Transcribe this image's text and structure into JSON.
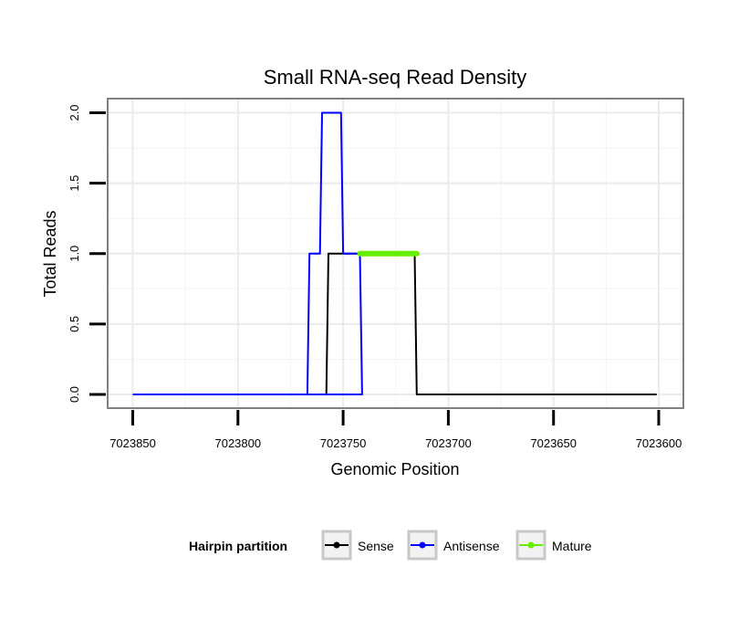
{
  "chart_data": {
    "type": "line",
    "title": "Small RNA-seq Read Density",
    "xlabel": "Genomic Position",
    "ylabel": "Total Reads",
    "x_reversed": true,
    "xlim": [
      7023850,
      7023600
    ],
    "ylim": [
      0,
      2
    ],
    "x_ticks": [
      7023850,
      7023800,
      7023750,
      7023700,
      7023650,
      7023600
    ],
    "x_tick_labels": [
      "7023850",
      "7023800",
      "7023750",
      "7023700",
      "7023650",
      "7023600"
    ],
    "y_ticks": [
      0,
      0.5,
      1,
      1.5,
      2
    ],
    "y_tick_labels": [
      "0.0",
      "0.5",
      "1.0",
      "1.5",
      "2.0"
    ],
    "grid": true,
    "legend_title": "Hairpin partition",
    "legend_position": "bottom",
    "series": [
      {
        "name": "Sense",
        "color": "#000000",
        "step": true,
        "points": [
          [
            7023850,
            0
          ],
          [
            7023758,
            0
          ],
          [
            7023757,
            1
          ],
          [
            7023716,
            1
          ],
          [
            7023715,
            0
          ],
          [
            7023601,
            0
          ]
        ]
      },
      {
        "name": "Antisense",
        "color": "#0000ff",
        "step": true,
        "points": [
          [
            7023850,
            0
          ],
          [
            7023767,
            0
          ],
          [
            7023766,
            1
          ],
          [
            7023761,
            1
          ],
          [
            7023760,
            2
          ],
          [
            7023751,
            2
          ],
          [
            7023750,
            1
          ],
          [
            7023742,
            1
          ],
          [
            7023741,
            0
          ],
          [
            7023850,
            0
          ]
        ]
      },
      {
        "name": "Mature",
        "color": "#66ee00",
        "step": false,
        "points": [
          [
            7023742,
            1
          ],
          [
            7023715,
            1
          ]
        ]
      }
    ]
  }
}
